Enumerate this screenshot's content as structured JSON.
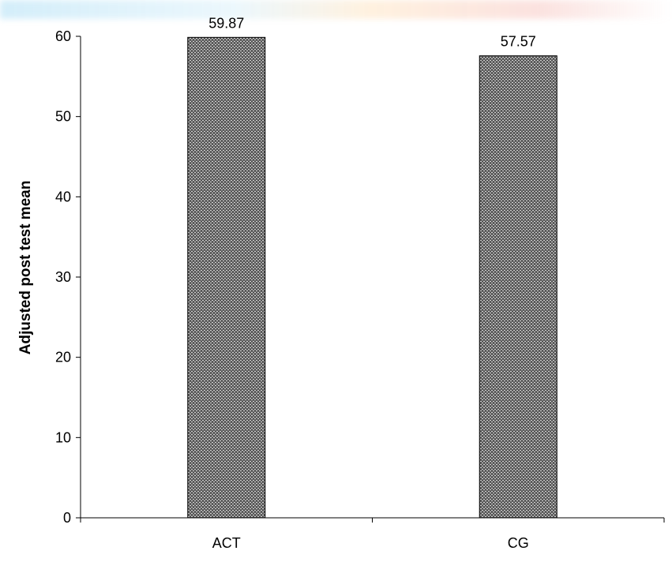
{
  "chart_data": {
    "type": "bar",
    "categories": [
      "ACT",
      "CG"
    ],
    "values": [
      59.87,
      57.57
    ],
    "value_labels": [
      "59.87",
      "57.57"
    ],
    "title": "",
    "xlabel": "",
    "ylabel": "Adjusted post test mean",
    "ylim": [
      0,
      60
    ],
    "yticks": [
      "0",
      "10",
      "20",
      "30",
      "40",
      "50",
      "60"
    ],
    "grid": false,
    "legend": "none",
    "bar_fill": "dotted-pattern",
    "colors": {
      "bar_base": "#5a5a5a",
      "bar_dots": "#d8d8d8",
      "axis": "#000000"
    }
  }
}
